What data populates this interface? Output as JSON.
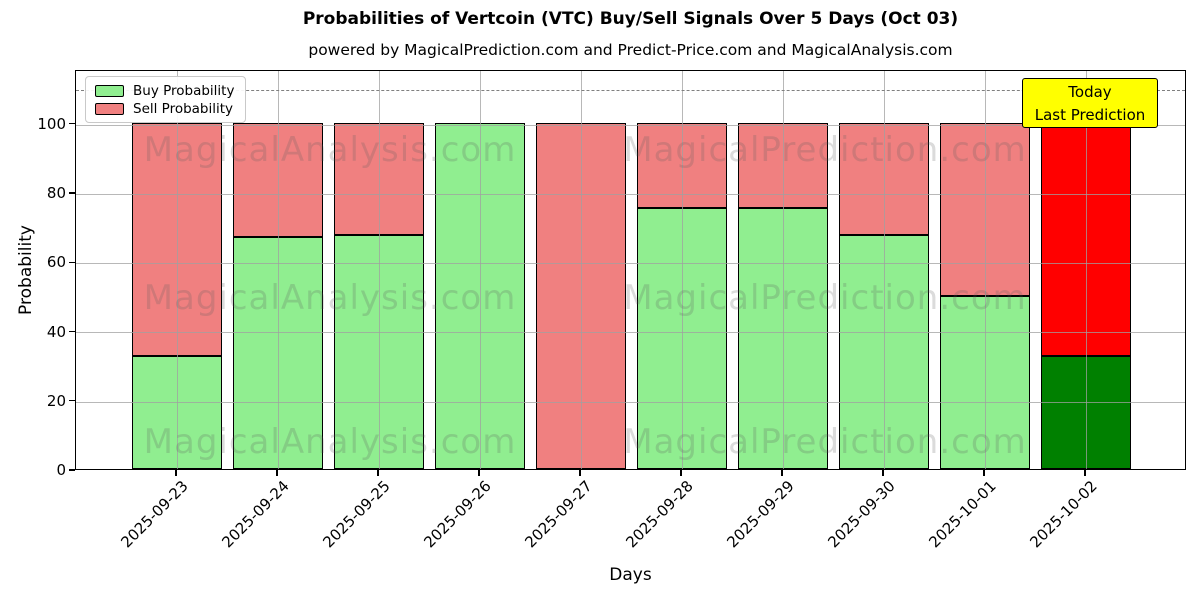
{
  "header": {
    "title": "Probabilities of Vertcoin (VTC) Buy/Sell Signals Over 5 Days (Oct 03)",
    "subtitle": "powered by MagicalPrediction.com and Predict-Price.com and MagicalAnalysis.com"
  },
  "axes": {
    "xlabel": "Days",
    "ylabel": "Probability",
    "yticks": [
      0,
      20,
      40,
      60,
      80,
      100
    ]
  },
  "legend": {
    "items": [
      {
        "label": "Buy Probability",
        "color": "#90ee90"
      },
      {
        "label": "Sell Probability",
        "color": "#f08080"
      }
    ]
  },
  "annotation_box": {
    "line1": "Today",
    "line2": "Last Prediction",
    "bg_color": "#ffff00"
  },
  "watermark": {
    "left_text": "MagicalAnalysis.com",
    "right_text": "MagicalPrediction.com"
  },
  "chart_data": {
    "type": "bar",
    "stacked": true,
    "title": "Probabilities of Vertcoin (VTC) Buy/Sell Signals Over 5 Days (Oct 03)",
    "xlabel": "Days",
    "ylabel": "Probability",
    "categories": [
      "2025-09-23",
      "2025-09-24",
      "2025-09-25",
      "2025-09-26",
      "2025-09-27",
      "2025-09-28",
      "2025-09-29",
      "2025-09-30",
      "2025-10-01",
      "2025-10-02"
    ],
    "series": [
      {
        "name": "Buy Probability",
        "color": "#90ee90",
        "last_bar_color": "#008000",
        "values": [
          32.5,
          67,
          67.5,
          100,
          0,
          75.5,
          75.5,
          67.5,
          50,
          32.5
        ]
      },
      {
        "name": "Sell Probability",
        "color": "#f08080",
        "last_bar_color": "#ff0000",
        "values": [
          67.5,
          33,
          32.5,
          0,
          100,
          24.5,
          24.5,
          32.5,
          50,
          67.5
        ]
      }
    ],
    "ylim": [
      0,
      115.5
    ],
    "yticks": [
      0,
      20,
      40,
      60,
      80,
      100
    ],
    "dashed_line_y": 110,
    "grid": true,
    "legend_position": "upper left",
    "bar_edge_color": "#000000",
    "highlighted_last_bar": true
  }
}
